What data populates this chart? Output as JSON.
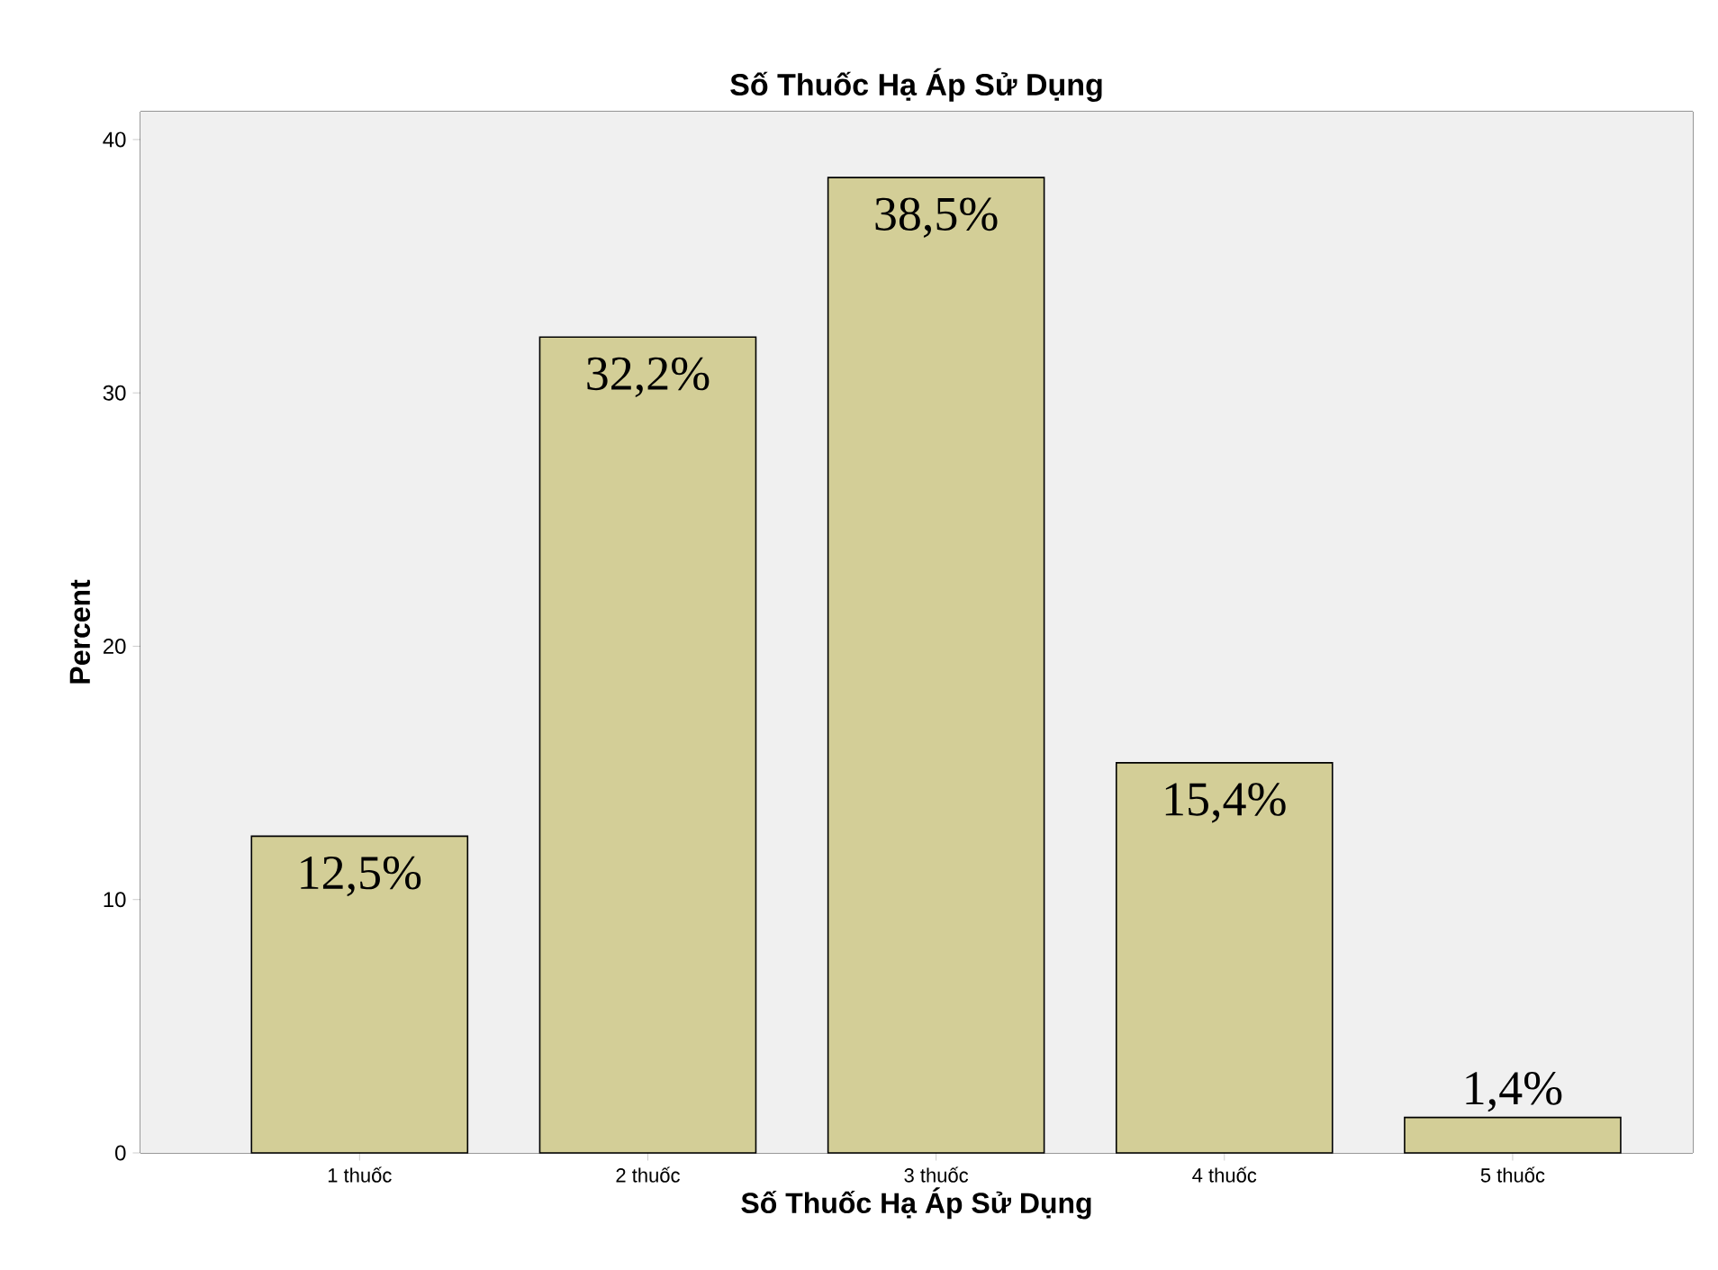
{
  "chart_data": {
    "type": "bar",
    "title": "Số Thuốc Hạ Áp Sử Dụng",
    "xlabel": "Số Thuốc Hạ Áp Sử Dụng",
    "ylabel": "Percent",
    "categories": [
      "1 thuốc",
      "2 thuốc",
      "3 thuốc",
      "4 thuốc",
      "5 thuốc"
    ],
    "values": [
      12.5,
      32.2,
      38.5,
      15.4,
      1.4
    ],
    "value_labels": [
      "12,5%",
      "32,2%",
      "38,5%",
      "15,4%",
      "1,4%"
    ],
    "color": "#d3ce97",
    "ylim": [
      0,
      41.1
    ],
    "yticks": [
      0,
      10,
      20,
      30,
      40
    ],
    "grid": false
  }
}
